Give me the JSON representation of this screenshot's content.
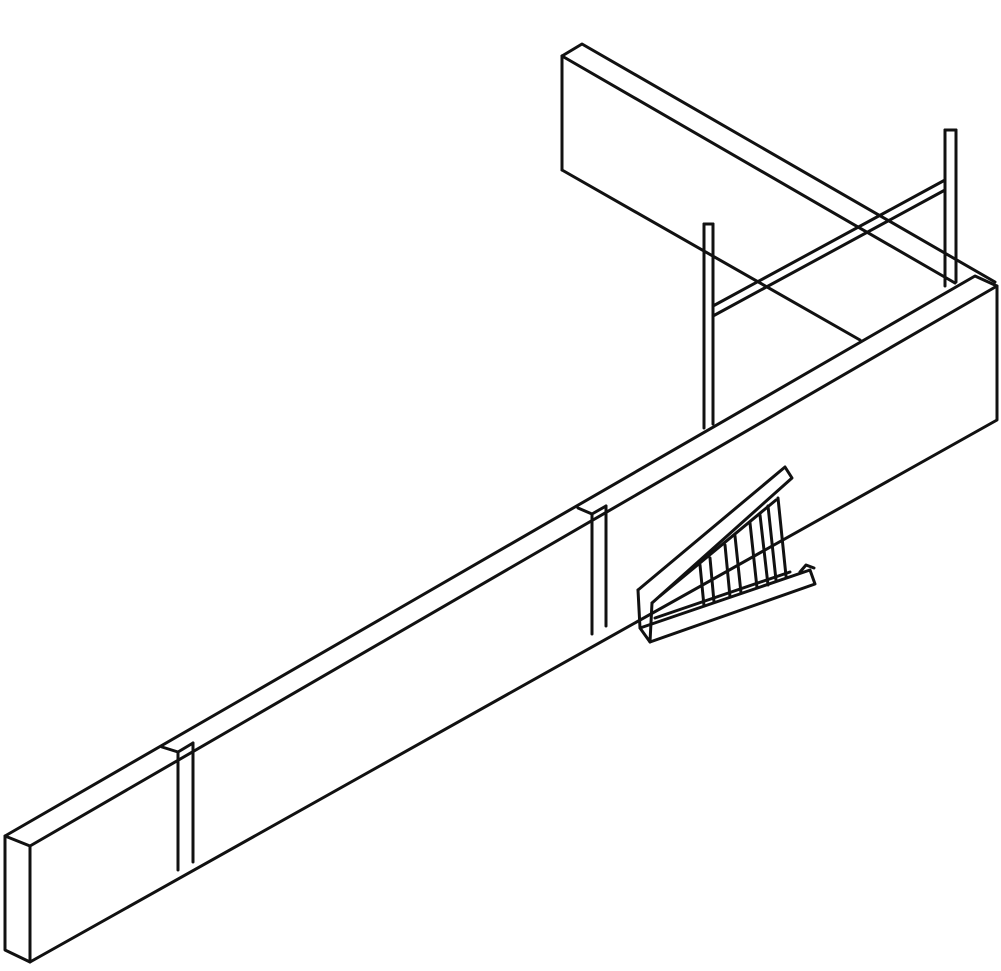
{
  "drawing": {
    "style": "line-art",
    "background_color": "#ffffff",
    "stroke_color": "#111111",
    "components": [
      {
        "name": "long-wall-panel",
        "label": ""
      },
      {
        "name": "short-wall-panel",
        "label": ""
      },
      {
        "name": "wall-joint",
        "label": ""
      },
      {
        "name": "vertical-pipe",
        "label": ""
      },
      {
        "name": "horizontal-brace",
        "label": ""
      },
      {
        "name": "ladder",
        "label": ""
      }
    ]
  }
}
